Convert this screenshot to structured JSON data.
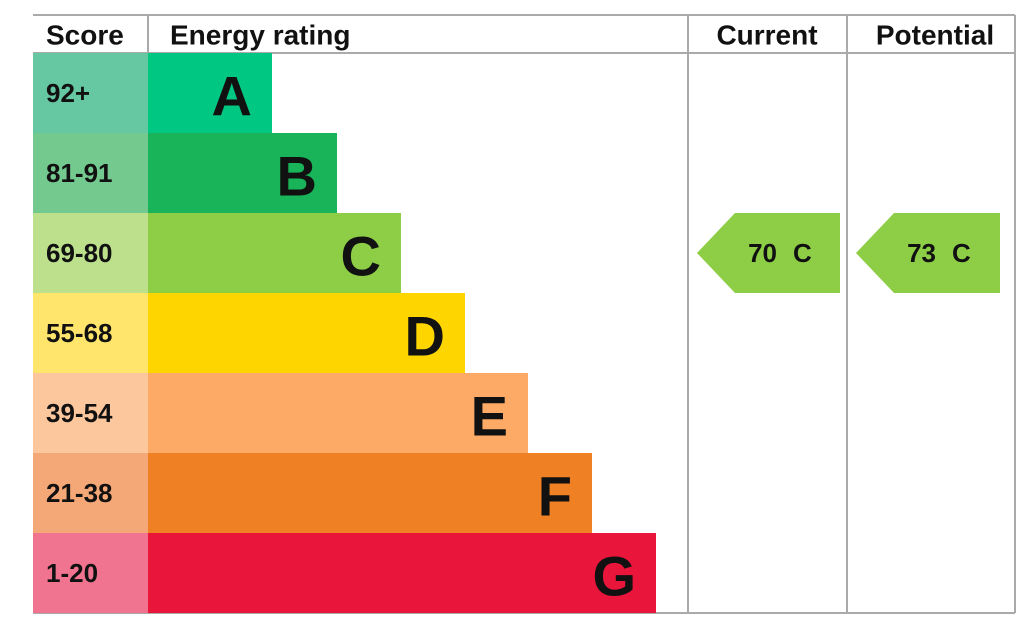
{
  "headers": {
    "score": "Score",
    "rating": "Energy rating",
    "current": "Current",
    "potential": "Potential"
  },
  "bands": [
    {
      "score": "92+",
      "letter": "A",
      "color": "#00c781",
      "score_color": "#66c8a2"
    },
    {
      "score": "81-91",
      "letter": "B",
      "color": "#19b459",
      "score_color": "#74c98f"
    },
    {
      "score": "69-80",
      "letter": "C",
      "color": "#8dce46",
      "score_color": "#bce08b"
    },
    {
      "score": "55-68",
      "letter": "D",
      "color": "#ffd500",
      "score_color": "#ffe56b"
    },
    {
      "score": "39-54",
      "letter": "E",
      "color": "#fcaa65",
      "score_color": "#fdc79e"
    },
    {
      "score": "21-38",
      "letter": "F",
      "color": "#ef8023",
      "score_color": "#f4a877"
    },
    {
      "score": "1-20",
      "letter": "G",
      "color": "#e9153b",
      "score_color": "#f07390"
    }
  ],
  "current": {
    "score": 70,
    "letter": "C"
  },
  "potential": {
    "score": 73,
    "letter": "C"
  }
}
